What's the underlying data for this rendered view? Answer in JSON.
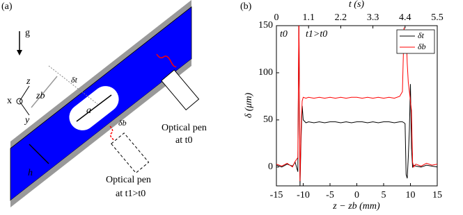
{
  "panel_labels": [
    "(a)",
    "(b)"
  ],
  "diagram": {
    "gravity": "g",
    "axis_z": "z",
    "axis_x": "x",
    "axis_y": "y",
    "z_b": "zb",
    "delta_t": "δt",
    "bubble_length": "a",
    "delta_b": "δb",
    "thickness": "h",
    "pen_1": {
      "line1": "Optical pen",
      "line2": "at t0"
    },
    "pen_2": {
      "line1": "Optical pen",
      "line2": "at t1>t0"
    }
  },
  "chart_data": {
    "type": "line",
    "xlabel": "z − zb (mm)",
    "ylabel": "δ (μm)",
    "x2label": "t (s)",
    "xlim": [
      -15,
      15
    ],
    "xticks": [
      -15,
      -10,
      -5,
      0,
      5,
      10,
      15
    ],
    "ylim": [
      -20,
      150
    ],
    "yticks": [
      0,
      50,
      100,
      150
    ],
    "x2lim": [
      0,
      5.5
    ],
    "x2ticks": [
      0,
      1.1,
      2.2,
      3.3,
      4.4,
      5.5
    ],
    "annotations": [
      "t0",
      "t1>t0"
    ],
    "legend": "upper right",
    "x": [
      -15,
      -14,
      -13,
      -12,
      -11.5,
      -11,
      -10.8,
      -10.6,
      -10.4,
      -10.2,
      -10,
      -9.5,
      -9,
      -8,
      -7,
      -6,
      -5,
      -4,
      -3,
      -2,
      -1,
      0,
      1,
      2,
      3,
      4,
      5,
      6,
      7,
      8,
      8.5,
      8.8,
      9,
      9.2,
      9.4,
      9.6,
      9.8,
      10,
      10.2,
      10.4,
      10.6,
      11,
      12,
      13,
      14,
      15
    ],
    "series": [
      {
        "name": "δt",
        "color": "#000000",
        "values": [
          2,
          0,
          3,
          1,
          5,
          -5,
          160,
          -20,
          30,
          65,
          50,
          47,
          48,
          47,
          48,
          47,
          48,
          48,
          47,
          48,
          47,
          48,
          48,
          47,
          48,
          47,
          48,
          48,
          47,
          48,
          48,
          47,
          46,
          -8,
          -12,
          10,
          40,
          88,
          20,
          0,
          2,
          1,
          0,
          2,
          1,
          0
        ]
      },
      {
        "name": "δb",
        "color": "#ff0000",
        "values": [
          3,
          1,
          4,
          0,
          6,
          10,
          160,
          -15,
          40,
          70,
          74,
          73,
          74,
          73,
          74,
          73,
          74,
          73,
          74,
          73,
          74,
          74,
          73,
          74,
          73,
          74,
          73,
          74,
          73,
          75,
          80,
          148,
          130,
          145,
          110,
          90,
          80,
          70,
          60,
          5,
          0,
          3,
          1,
          4,
          2,
          3
        ]
      }
    ]
  }
}
